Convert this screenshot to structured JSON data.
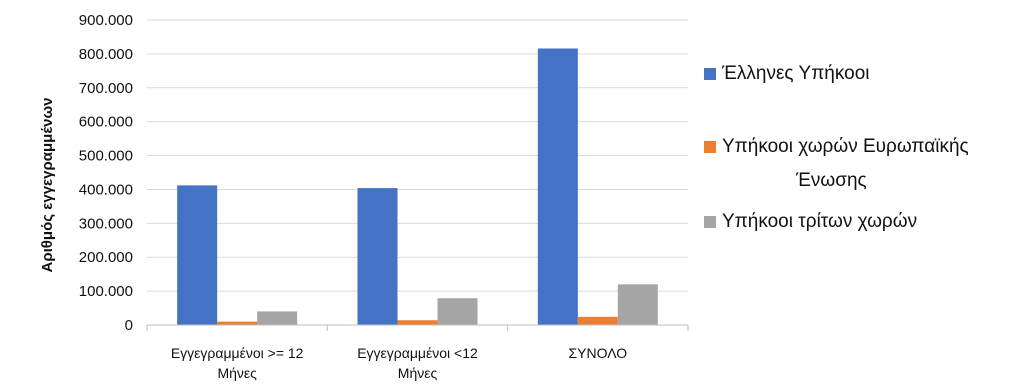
{
  "chart_data": {
    "type": "bar",
    "title": "",
    "xlabel": "",
    "ylabel": "Αριθμός εγγεγραμμένων",
    "ylim": [
      0,
      900000
    ],
    "y_ticks": [
      0,
      100000,
      200000,
      300000,
      400000,
      500000,
      600000,
      700000,
      800000,
      900000
    ],
    "y_tick_labels": [
      "0",
      "100.000",
      "200.000",
      "300.000",
      "400.000",
      "500.000",
      "600.000",
      "700.000",
      "800.000",
      "900.000"
    ],
    "grid": true,
    "legend_position": "right",
    "categories": [
      [
        "Εγγεγραμμένοι  >= 12",
        "Μήνες"
      ],
      [
        "Εγγεγραμμένοι  <12",
        "Μήνες"
      ],
      [
        "ΣΥΝΟΛΟ"
      ]
    ],
    "series": [
      {
        "name": "Έλληνες Υπήκοοι",
        "legend_lines": [
          "Έλληνες Υπήκοοι"
        ],
        "color": "#4472C4",
        "values": [
          412000,
          404000,
          816000
        ]
      },
      {
        "name": "Υπήκοοι χωρών Ευρωπαϊκής Ένωσης",
        "legend_lines": [
          "Υπήκοοι χωρών Ευρωπαϊκής",
          "Ένωσης"
        ],
        "color": "#ED7D31",
        "values": [
          10000,
          14000,
          24000
        ]
      },
      {
        "name": "Υπήκοοι τρίτων χωρών",
        "legend_lines": [
          "Υπήκοοι τρίτων χωρών"
        ],
        "color": "#A5A5A5",
        "values": [
          40000,
          79000,
          120000
        ]
      }
    ]
  }
}
